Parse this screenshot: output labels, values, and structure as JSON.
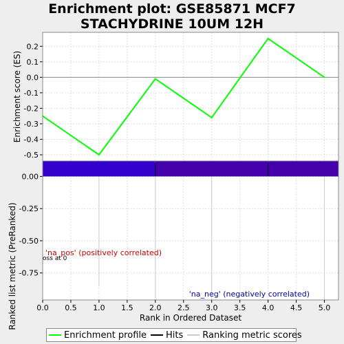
{
  "chart_data": {
    "type": "line",
    "title_lines": [
      "Enrichment plot: GSE85871 MCF7",
      "STACHYDRINE 10UM 12H"
    ],
    "es_panel": {
      "ylabel": "Enrichment score (ES)",
      "ylim": [
        -0.54,
        0.29
      ],
      "yticks": [
        0.2,
        0.1,
        0.0,
        -0.1,
        -0.2,
        -0.3,
        -0.4,
        -0.5
      ],
      "ytick_labels": [
        "0.2",
        "0.1",
        "0.0",
        "-0.1",
        "-0.2",
        "-0.3",
        "-0.4",
        "-0.5"
      ],
      "series": [
        {
          "name": "Enrichment profile",
          "color": "#00ff00",
          "x": [
            0,
            1,
            2,
            3,
            4,
            5
          ],
          "values": [
            -0.25,
            -0.5,
            -0.01,
            -0.26,
            0.25,
            0.0
          ]
        }
      ],
      "grid": true
    },
    "hits": {
      "name": "Hits",
      "color": "#000000",
      "x": [
        2,
        4
      ]
    },
    "rank_panel": {
      "ylabel": "Ranked list metric (PreRanked)",
      "ylim": [
        -0.96,
        0.12
      ],
      "yticks": [
        0.0,
        -0.25,
        -0.5,
        -0.75
      ],
      "ytick_labels": [
        "0.00",
        "-0.25",
        "-0.50",
        "-0.75"
      ],
      "bar_color": "#3300cc",
      "bar_color_right": "#4400aa",
      "bar_top": 0.12,
      "series_name": "Ranking metric scores",
      "ranking_line_color": "#cccccc",
      "annotations": {
        "pos": "'na_pos' (positively correlated)",
        "pos_color": "#cc0000",
        "neg": "'na_neg' (negatively correlated)",
        "neg_color": "#0000aa",
        "zero_cross": "oss at 0"
      }
    },
    "x_axis": {
      "xlabel": "Rank in Ordered Dataset",
      "xlim": [
        0,
        5.25
      ],
      "xticks": [
        0.0,
        0.5,
        1.0,
        1.5,
        2.0,
        2.5,
        3.0,
        3.5,
        4.0,
        4.5,
        5.0
      ],
      "xtick_labels": [
        "0.0",
        "0.5",
        "1.0",
        "1.5",
        "2.0",
        "2.5",
        "3.0",
        "3.5",
        "4.0",
        "4.5",
        "5.0"
      ]
    },
    "legend": {
      "placement": "bottom",
      "items": [
        {
          "label": "Enrichment profile",
          "color": "#00ff00"
        },
        {
          "label": "Hits",
          "color": "#000000"
        },
        {
          "label": "Ranking metric scores",
          "color": "#cccccc"
        }
      ]
    }
  }
}
